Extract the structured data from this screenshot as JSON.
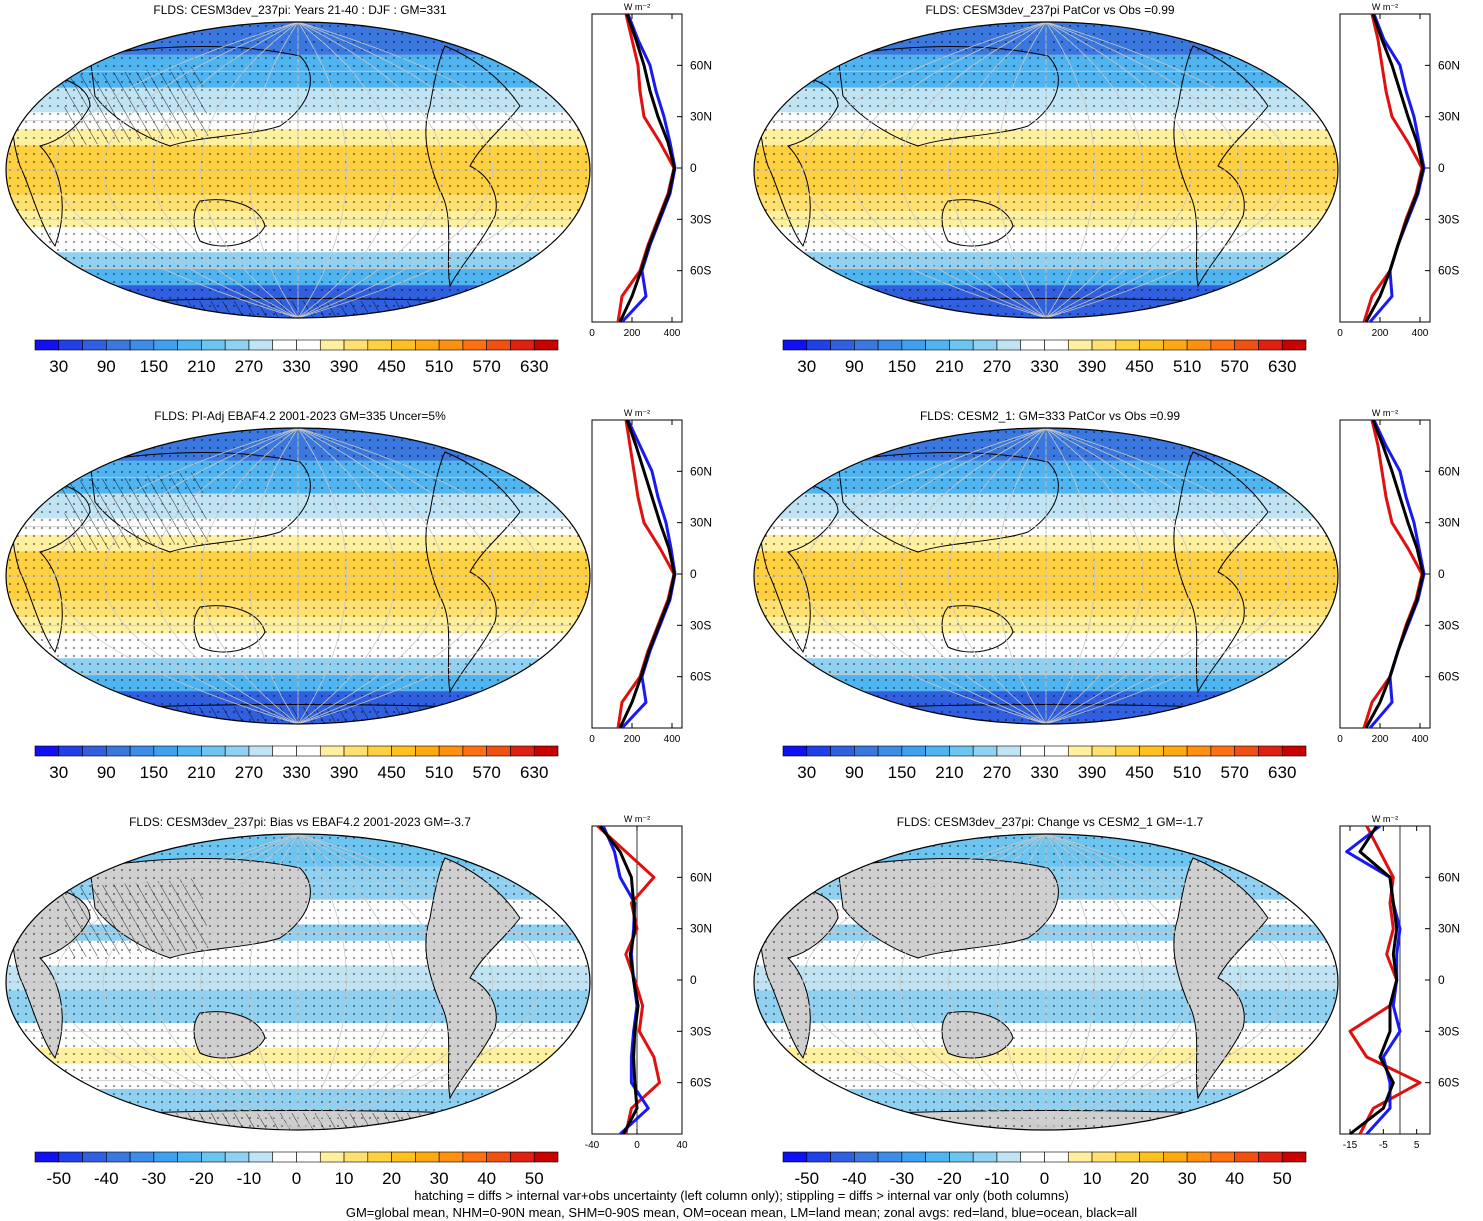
{
  "panels": [
    {
      "id": "p1",
      "title": "FLDS: CESM3dev_237pi: Years 21-40 : DJF : GM=331",
      "kind": "abs",
      "hatch": true
    },
    {
      "id": "p2",
      "title": "FLDS: CESM3dev_237pi PatCor vs Obs =0.99",
      "kind": "abs",
      "hatch": false
    },
    {
      "id": "p3",
      "title": "FLDS: PI-Adj EBAF4.2 2001-2023 GM=335 Uncer=5%",
      "kind": "abs",
      "hatch": true
    },
    {
      "id": "p4",
      "title": "FLDS: CESM2_1: GM=333 PatCor vs Obs =0.99",
      "kind": "abs",
      "hatch": false
    },
    {
      "id": "p5",
      "title": "FLDS: CESM3dev_237pi: Bias vs EBAF4.2 2001-2023 GM=-3.7",
      "kind": "diff",
      "hatch": true
    },
    {
      "id": "p6",
      "title": "FLDS: CESM3dev_237pi: Change vs CESM2_1 GM=-1.7",
      "kind": "diff",
      "hatch": false
    }
  ],
  "colorbars": {
    "abs_labels": [
      "30",
      "90",
      "150",
      "210",
      "270",
      "330",
      "390",
      "450",
      "510",
      "570",
      "630"
    ],
    "diff_labels": [
      "-50",
      "-40",
      "-30",
      "-20",
      "-10",
      "0",
      "10",
      "20",
      "30",
      "40",
      "50"
    ],
    "colors": [
      "#1010f0",
      "#2040e8",
      "#3060e0",
      "#3a78e0",
      "#3c8ce8",
      "#40a0f0",
      "#50b4f0",
      "#6cc4f0",
      "#90d0f0",
      "#c0e4f4",
      "#ffffff",
      "#ffffff",
      "#fff0a0",
      "#ffe070",
      "#ffd040",
      "#ffc020",
      "#ffa810",
      "#ff9010",
      "#ff7010",
      "#f05010",
      "#e02010",
      "#c80000"
    ]
  },
  "zonal_axes": {
    "lat_labels": [
      "60N",
      "30N",
      "0",
      "30S",
      "60S"
    ],
    "unit_label": "W m⁻²",
    "abs_ticks": [
      "0",
      "200",
      "400"
    ],
    "bias_ticks": [
      "-40",
      "0",
      "40"
    ],
    "change_ticks": [
      "-15",
      "-5",
      "5"
    ]
  },
  "chart_data": [
    {
      "type": "line",
      "panel": "p1",
      "xlim": [
        0,
        450
      ],
      "lat": [
        90,
        75,
        60,
        45,
        30,
        15,
        0,
        -15,
        -30,
        -45,
        -60,
        -75,
        -90
      ],
      "series": [
        {
          "color": "red",
          "values": [
            170,
            200,
            230,
            240,
            260,
            340,
            410,
            380,
            330,
            280,
            240,
            150,
            130
          ]
        },
        {
          "color": "blue",
          "values": [
            180,
            230,
            290,
            320,
            360,
            390,
            415,
            390,
            340,
            290,
            250,
            270,
            150
          ]
        },
        {
          "color": "black",
          "values": [
            175,
            220,
            260,
            290,
            330,
            380,
            412,
            385,
            335,
            285,
            245,
            200,
            140
          ]
        }
      ]
    },
    {
      "type": "line",
      "panel": "p2",
      "xlim": [
        0,
        450
      ],
      "lat": [
        90,
        75,
        60,
        45,
        30,
        15,
        0,
        -15,
        -30,
        -45,
        -60,
        -75,
        -90
      ],
      "series": [
        {
          "color": "red",
          "values": [
            160,
            190,
            210,
            230,
            260,
            340,
            410,
            380,
            330,
            290,
            250,
            160,
            120
          ]
        },
        {
          "color": "blue",
          "values": [
            170,
            220,
            300,
            330,
            370,
            395,
            420,
            390,
            340,
            290,
            250,
            260,
            150
          ]
        },
        {
          "color": "black",
          "values": [
            165,
            210,
            260,
            300,
            340,
            385,
            415,
            385,
            335,
            290,
            250,
            200,
            130
          ]
        }
      ]
    },
    {
      "type": "line",
      "panel": "p3",
      "xlim": [
        0,
        450
      ],
      "lat": [
        90,
        75,
        60,
        45,
        30,
        15,
        0,
        -15,
        -30,
        -45,
        -60,
        -75,
        -90
      ],
      "series": [
        {
          "color": "red",
          "values": [
            170,
            190,
            210,
            230,
            260,
            340,
            410,
            380,
            330,
            280,
            240,
            150,
            130
          ]
        },
        {
          "color": "blue",
          "values": [
            180,
            240,
            300,
            330,
            370,
            395,
            415,
            390,
            340,
            290,
            250,
            270,
            150
          ]
        },
        {
          "color": "black",
          "values": [
            175,
            220,
            260,
            300,
            340,
            385,
            412,
            385,
            335,
            285,
            245,
            200,
            140
          ]
        }
      ]
    },
    {
      "type": "line",
      "panel": "p4",
      "xlim": [
        0,
        450
      ],
      "lat": [
        90,
        75,
        60,
        45,
        30,
        15,
        0,
        -15,
        -30,
        -45,
        -60,
        -75,
        -90
      ],
      "series": [
        {
          "color": "red",
          "values": [
            160,
            190,
            210,
            230,
            260,
            340,
            410,
            380,
            330,
            290,
            250,
            160,
            120
          ]
        },
        {
          "color": "blue",
          "values": [
            170,
            230,
            300,
            330,
            370,
            395,
            420,
            390,
            340,
            290,
            250,
            260,
            150
          ]
        },
        {
          "color": "black",
          "values": [
            165,
            215,
            260,
            300,
            340,
            385,
            415,
            385,
            335,
            290,
            250,
            200,
            130
          ]
        }
      ]
    },
    {
      "type": "line",
      "panel": "p5",
      "xlim": [
        -40,
        40
      ],
      "lat": [
        90,
        75,
        60,
        45,
        30,
        15,
        0,
        -15,
        -30,
        -45,
        -60,
        -75,
        -90
      ],
      "series": [
        {
          "color": "red",
          "values": [
            -35,
            -10,
            15,
            -5,
            0,
            -10,
            -2,
            5,
            2,
            15,
            20,
            -5,
            -10
          ]
        },
        {
          "color": "blue",
          "values": [
            -30,
            -20,
            -15,
            -2,
            -3,
            -5,
            -3,
            0,
            -3,
            -5,
            -5,
            10,
            -15
          ]
        },
        {
          "color": "black",
          "values": [
            -33,
            -15,
            -5,
            -3,
            -2,
            -6,
            -3,
            1,
            -2,
            -3,
            -2,
            0,
            -12
          ]
        }
      ]
    },
    {
      "type": "line",
      "panel": "p6",
      "xlim": [
        -18,
        9
      ],
      "lat": [
        90,
        75,
        60,
        45,
        30,
        15,
        0,
        -15,
        -30,
        -45,
        -60,
        -75,
        -90
      ],
      "series": [
        {
          "color": "red",
          "values": [
            -10,
            -6,
            -2,
            -3,
            -2,
            -4,
            -1,
            -3,
            -15,
            -10,
            6,
            -8,
            -12
          ]
        },
        {
          "color": "blue",
          "values": [
            -6,
            -16,
            -3,
            -2,
            0,
            -1,
            -1,
            -2,
            0,
            -5,
            -3,
            -3,
            -10
          ]
        },
        {
          "color": "black",
          "values": [
            -7,
            -12,
            -3,
            -2,
            -1,
            -2,
            -1,
            -3,
            -3,
            -6,
            -2,
            -5,
            -15
          ]
        }
      ]
    }
  ],
  "footer": [
    "hatching = diffs > internal var+obs uncertainty (left column only); stippling = diffs > internal var only (both columns)",
    "GM=global mean, NHM=0-90N mean, SHM=0-90S mean, OM=ocean mean, LM=land mean; zonal avgs: red=land, blue=ocean, black=all"
  ]
}
